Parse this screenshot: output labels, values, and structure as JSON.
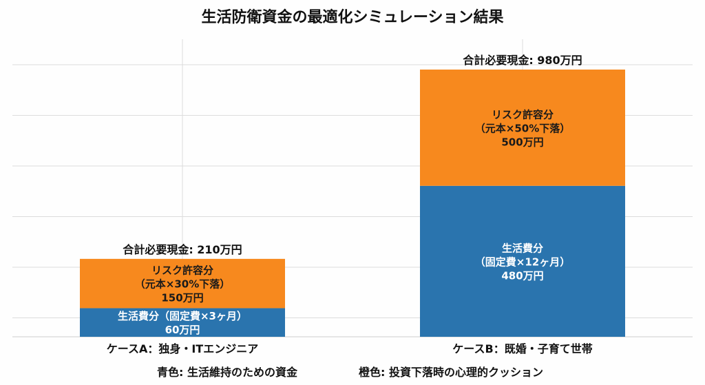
{
  "chart_data": {
    "type": "bar",
    "stacked": true,
    "title": "生活防衛資金の最適化シミュレーション結果",
    "categories": [
      "ケースA：独身・ITエンジニア",
      "ケースB：既婚・子育て世帯"
    ],
    "series": [
      {
        "key": "living",
        "color": "#2A74AE",
        "values": [
          60,
          480
        ],
        "labels": [
          [
            "生活費分（固定費×3ヶ月）",
            "60万円"
          ],
          [
            "生活費分",
            "（固定費×12ヶ月）",
            "480万円"
          ]
        ]
      },
      {
        "key": "risk",
        "color": "#F7891E",
        "values": [
          150,
          500
        ],
        "labels": [
          [
            "リスク許容分",
            "（元本×30%下落）",
            "150万円"
          ],
          [
            "リスク許容分",
            "（元本×50%下落）",
            "500万円"
          ]
        ]
      }
    ],
    "totals": [
      210,
      980
    ],
    "total_labels": [
      "合計必要現金: 210万円",
      "合計必要現金: 980万円"
    ],
    "unit": "万円",
    "grid": true,
    "legend_note": [
      "青色: 生活維持のための資金",
      "橙色: 投資下落時の心理的クッション"
    ]
  }
}
